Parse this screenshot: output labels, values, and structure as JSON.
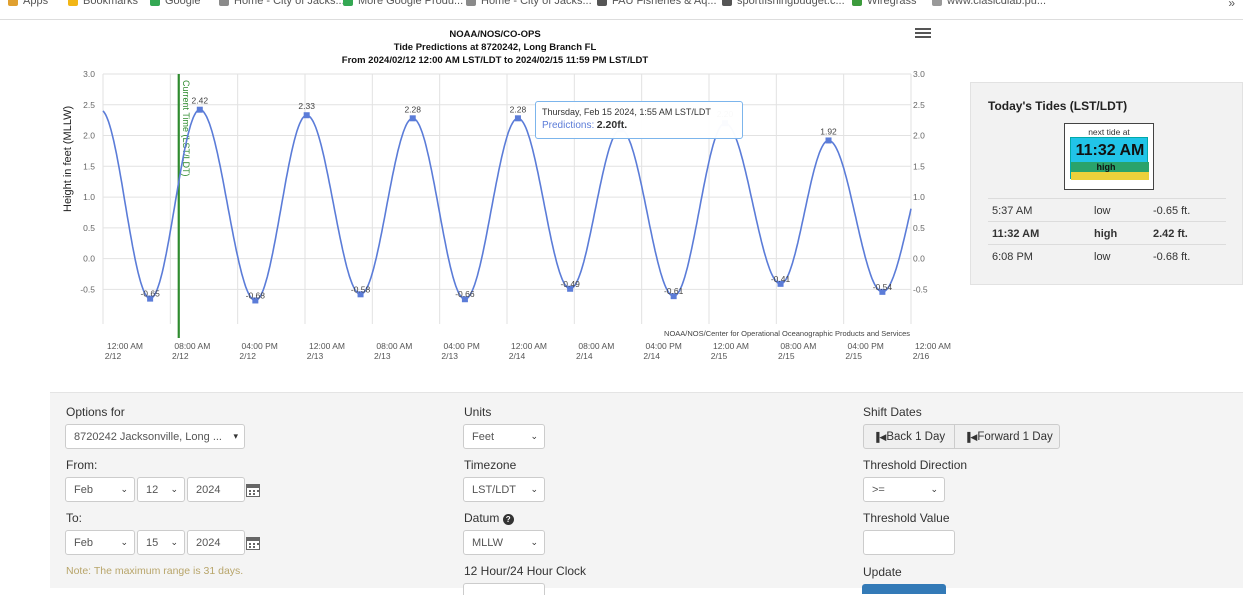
{
  "bookmarks_bar": {
    "items": [
      {
        "label": "Apps",
        "color": "#e0a030"
      },
      {
        "label": "Bookmarks",
        "color": "#f2b616"
      },
      {
        "label": "Google",
        "color": "#34a853"
      },
      {
        "label": "Home - City of Jacks...",
        "color": "#8a8a8a"
      },
      {
        "label": "More Google Produ...",
        "color": "#34a853"
      },
      {
        "label": "Home - City of Jacks...",
        "color": "#8a8a8a"
      },
      {
        "label": "FAU Fisheries & Aq...",
        "color": "#555555"
      },
      {
        "label": "sportfishingbudget.c...",
        "color": "#555555"
      },
      {
        "label": "Wiregrass",
        "color": "#3c9b3c"
      },
      {
        "label": "www.clasicdiab.pu...",
        "color": "#999999"
      }
    ],
    "more": "»"
  },
  "chart_data": {
    "type": "line",
    "title": "NOAA/NOS/CO-OPS",
    "subtitle": "Tide Predictions at 8720242, Long Branch FL",
    "subtitle2": "From 2024/02/12 12:00 AM LST/LDT to 2024/02/15 11:59 PM LST/LDT",
    "ylabel": "Height in feet (MLLW)",
    "ylim": [
      -0.9,
      3.0
    ],
    "yticks": [
      "3.0",
      "2.5",
      "2.0",
      "1.5",
      "1.0",
      "0.5",
      "0.0",
      "-0.5"
    ],
    "y_grid_values": [
      3.0,
      2.5,
      2.0,
      1.5,
      1.0,
      0.5,
      0.0,
      -0.5
    ],
    "x_hours_range": [
      0,
      96
    ],
    "xticks": [
      {
        "h": 0,
        "t1": "12:00 AM",
        "t2": "2/12"
      },
      {
        "h": 8,
        "t1": "08:00 AM",
        "t2": "2/12"
      },
      {
        "h": 16,
        "t1": "04:00 PM",
        "t2": "2/12"
      },
      {
        "h": 24,
        "t1": "12:00 AM",
        "t2": "2/13"
      },
      {
        "h": 32,
        "t1": "08:00 AM",
        "t2": "2/13"
      },
      {
        "h": 40,
        "t1": "04:00 PM",
        "t2": "2/13"
      },
      {
        "h": 48,
        "t1": "12:00 AM",
        "t2": "2/14"
      },
      {
        "h": 56,
        "t1": "08:00 AM",
        "t2": "2/14"
      },
      {
        "h": 64,
        "t1": "04:00 PM",
        "t2": "2/14"
      },
      {
        "h": 72,
        "t1": "12:00 AM",
        "t2": "2/15"
      },
      {
        "h": 80,
        "t1": "08:00 AM",
        "t2": "2/15"
      },
      {
        "h": 88,
        "t1": "04:00 PM",
        "t2": "2/15"
      },
      {
        "h": 96,
        "t1": "12:00 AM",
        "t2": "2/16"
      }
    ],
    "series": [
      {
        "name": "Predictions",
        "color": "#5b7cd8",
        "start_value": 2.2,
        "end_value": 0.9,
        "extremes": [
          {
            "h": 5.6,
            "v": -0.65,
            "label": "-0.65"
          },
          {
            "h": 11.5,
            "v": 2.42,
            "label": "2.42"
          },
          {
            "h": 18.1,
            "v": -0.68,
            "label": "-0.68"
          },
          {
            "h": 24.2,
            "v": 2.33,
            "label": "2.33"
          },
          {
            "h": 30.6,
            "v": -0.58,
            "label": "-0.58"
          },
          {
            "h": 36.8,
            "v": 2.28,
            "label": "2.28"
          },
          {
            "h": 43.0,
            "v": -0.66,
            "label": "-0.66"
          },
          {
            "h": 49.3,
            "v": 2.28,
            "label": "2.28"
          },
          {
            "h": 55.5,
            "v": -0.49,
            "label": "-0.49"
          },
          {
            "h": 61.5,
            "v": 2.1,
            "label": ""
          },
          {
            "h": 67.8,
            "v": -0.61,
            "label": "-0.61"
          },
          {
            "h": 73.9,
            "v": 2.2,
            "label": "2.20"
          },
          {
            "h": 80.5,
            "v": -0.41,
            "label": "-0.41"
          },
          {
            "h": 86.2,
            "v": 1.92,
            "label": "1.92"
          },
          {
            "h": 92.6,
            "v": -0.54,
            "label": "-0.54"
          }
        ]
      }
    ],
    "current_time": {
      "h": 9.0,
      "label": "Current Time (LST/LDT)",
      "color": "#2e8b2e"
    },
    "credit": "NOAA/NOS/Center for Operational Oceanographic Products and Services",
    "grid": true
  },
  "tooltip": {
    "date": "Thursday, Feb 15 2024, 1:55 AM LST/LDT",
    "series": "Predictions:",
    "value": "2.20ft."
  },
  "tides_panel": {
    "title": "Today's Tides (LST/LDT)",
    "next_tide_label": "next tide at",
    "next_tide_time": "11:32 AM",
    "next_tide_state": "high",
    "rows": [
      {
        "time": "5:37 AM",
        "type": "low",
        "height": "-0.65 ft.",
        "bold": false
      },
      {
        "time": "11:32 AM",
        "type": "high",
        "height": "2.42 ft.",
        "bold": true
      },
      {
        "time": "6:08 PM",
        "type": "low",
        "height": "-0.68 ft.",
        "bold": false
      }
    ]
  },
  "options": {
    "options_for_label": "Options for",
    "station_value": "8720242 Jacksonville, Long ...",
    "from_label": "From:",
    "from_month": "Feb",
    "from_day": "12",
    "from_year": "2024",
    "to_label": "To:",
    "to_month": "Feb",
    "to_day": "15",
    "to_year": "2024",
    "note": "Note: The maximum range is 31 days.",
    "units_label": "Units",
    "units_value": "Feet",
    "timezone_label": "Timezone",
    "timezone_value": "LST/LDT",
    "datum_label": "Datum",
    "datum_value": "MLLW",
    "clock_label": "12 Hour/24 Hour Clock",
    "shift_label": "Shift Dates",
    "back_label": "Back 1 Day",
    "forward_label": "Forward 1 Day",
    "threshold_dir_label": "Threshold Direction",
    "threshold_dir_value": ">=",
    "threshold_val_label": "Threshold Value",
    "update_label": "Update"
  }
}
